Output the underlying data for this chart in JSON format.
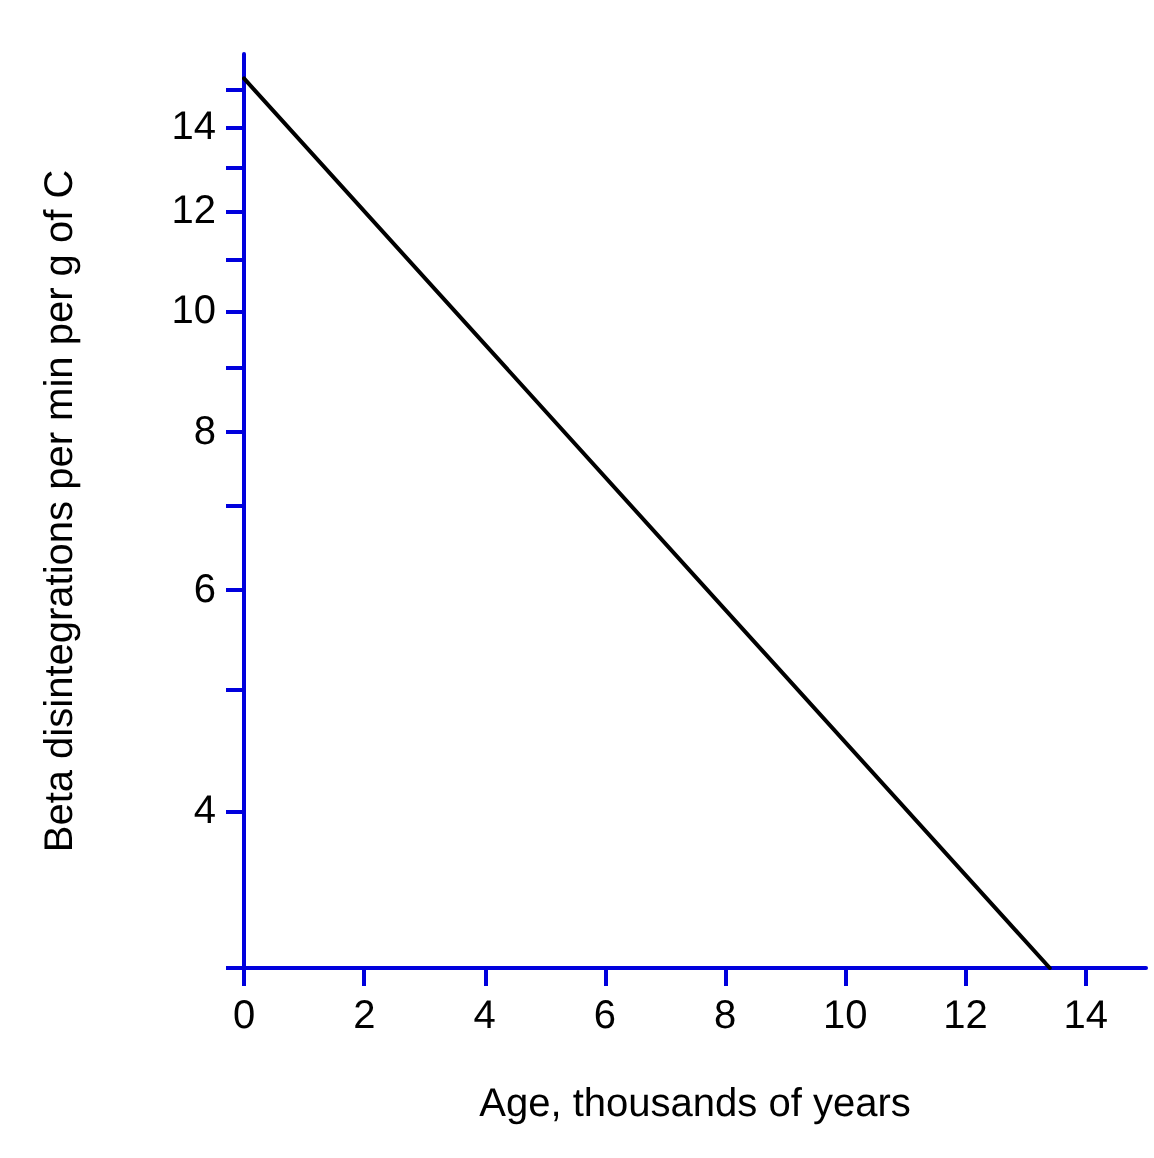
{
  "chart_data": {
    "type": "line",
    "xlabel": "Age, thousands of years",
    "ylabel": "Beta disintegrations per min per g of C",
    "x": [
      0,
      13.4
    ],
    "series": [
      {
        "color": "#000000",
        "values": [
          15.3,
          3
        ]
      }
    ],
    "xlim": [
      0,
      15
    ],
    "xticks": [
      0,
      2,
      4,
      6,
      8,
      10,
      12,
      14
    ],
    "ylim": [
      3,
      16
    ],
    "yticks": [
      {
        "value": 3,
        "label": null
      },
      4,
      {
        "value": 5,
        "label": null
      },
      6,
      {
        "value": 7,
        "label": null
      },
      8,
      {
        "value": 9,
        "label": null
      },
      10,
      {
        "value": 11,
        "label": null
      },
      12,
      {
        "value": 13,
        "label": null
      },
      14,
      {
        "value": 15,
        "label": null
      }
    ],
    "log": "y",
    "grid": false,
    "marker": "none",
    "line_style": "solid"
  }
}
